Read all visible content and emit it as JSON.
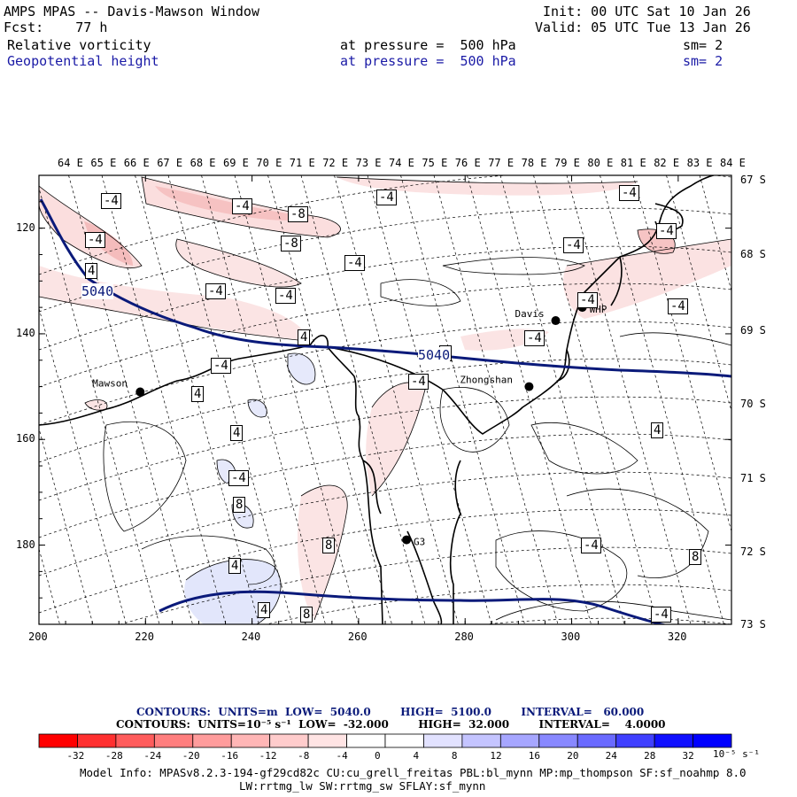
{
  "header": {
    "title": "AMPS MPAS -- Davis-Mawson Window",
    "fcst": "Fcst:    77 h",
    "init": "Init: 00 UTC Sat 10 Jan 26",
    "valid": "Valid: 05 UTC Tue 13 Jan 26",
    "field1": {
      "name": "Relative vorticity",
      "level": "at pressure =  500 hPa",
      "sm": "sm= 2"
    },
    "field2": {
      "name": "Geopotential height",
      "level": "at pressure =  500 hPa",
      "sm": "sm= 2"
    }
  },
  "colors": {
    "height_line": "#0a1a7a",
    "coast": "#000000",
    "neg_fill": "#fbe2e2",
    "neg_fill2": "#f6c4c4",
    "pos_fill": "#e4e8fb",
    "text_blue": "#1a1aa6"
  },
  "chart_data": {
    "type": "map",
    "x_axis": {
      "ticks": [
        200,
        220,
        240,
        260,
        280,
        300,
        320
      ],
      "range": [
        200,
        330
      ]
    },
    "y_axis": {
      "ticks": [
        120,
        140,
        160,
        180
      ],
      "range": [
        110,
        195
      ]
    },
    "longitude_labels": [
      "64 E",
      "65 E",
      "66 E",
      "67 E",
      "68 E",
      "69 E",
      "70 E",
      "71 E",
      "72 E",
      "73 E",
      "74 E",
      "75 E",
      "76 E",
      "77 E",
      "78 E",
      "79 E",
      "80 E",
      "81 E",
      "82 E",
      "83 E",
      "84 E"
    ],
    "latitude_labels": [
      "67 S",
      "68 S",
      "69 S",
      "70 S",
      "71 S",
      "72 S",
      "73 S"
    ],
    "geopotential_contour_labels": [
      "5040",
      "5040"
    ],
    "vorticity_labels": [
      "-4",
      "-4",
      "-8",
      "-4",
      "-8",
      "-4",
      "-4",
      "-4",
      "-4",
      "-4",
      "-4",
      "-4",
      "4",
      "-4",
      "-4",
      "-4",
      "-4",
      "4",
      "4",
      "-4",
      "8",
      "8",
      "8",
      "4",
      "8",
      "-4",
      "-4",
      "4",
      "4",
      "-4",
      "4",
      "4"
    ],
    "stations": [
      {
        "name": "Mawson",
        "x": 219,
        "y": 151
      },
      {
        "name": "Davis",
        "x": 297,
        "y": 137.5
      },
      {
        "name": "WHP",
        "x": 302,
        "y": 135
      },
      {
        "name": "Zhongshan",
        "x": 292,
        "y": 150
      },
      {
        "name": "G3",
        "x": 269,
        "y": 179
      }
    ]
  },
  "colorbar": {
    "contours_height": "CONTOURS:  UNITS=m  LOW=  5040.0        HIGH=  5100.0        INTERVAL=   60.000",
    "contours_vort": "CONTOURS:  UNITS=10⁻⁵ s⁻¹  LOW=  -32.000        HIGH=  32.000        INTERVAL=    4.0000",
    "ticks": [
      "-32",
      "-28",
      "-24",
      "-20",
      "-16",
      "-12",
      "-8",
      "-4",
      "0",
      "4",
      "8",
      "12",
      "16",
      "20",
      "24",
      "28",
      "32"
    ],
    "units": "10⁻⁵ s⁻¹",
    "colors": [
      "#ff0000",
      "#ff3030",
      "#ff5c5c",
      "#ff7e7e",
      "#ff9c9c",
      "#ffb6b6",
      "#ffcccc",
      "#ffe4e4",
      "#ffffff",
      "#ffffff",
      "#e2e2ff",
      "#c4c4ff",
      "#a6a6ff",
      "#8888ff",
      "#6a6aff",
      "#4040ff",
      "#1010ff",
      "#0000ff"
    ]
  },
  "footer": {
    "line1": "Model Info: MPASv8.2.3-194-gf29cd82c CU:cu_grell_freitas PBL:bl_mynn MP:mp_thompson SF:sf_noahmp 8.0",
    "line2": "LW:rrtmg_lw SW:rrtmg_sw SFLAY:sf_mynn"
  }
}
